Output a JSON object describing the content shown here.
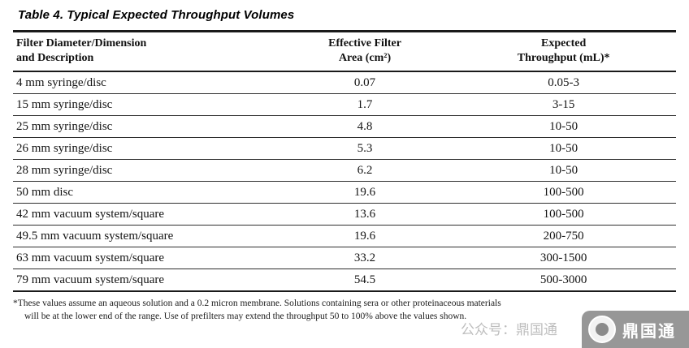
{
  "title": "Table 4. Typical Expected Throughput Volumes",
  "table": {
    "headers": [
      {
        "line1": "Filter Diameter/Dimension",
        "line2": "and Description"
      },
      {
        "line1": "Effective Filter",
        "line2": "Area (cm²)"
      },
      {
        "line1": "Expected",
        "line2": "Throughput (mL)*"
      }
    ],
    "rows": [
      [
        "4 mm syringe/disc",
        "0.07",
        "0.05-3"
      ],
      [
        "15 mm syringe/disc",
        "1.7",
        "3-15"
      ],
      [
        "25 mm syringe/disc",
        "4.8",
        "10-50"
      ],
      [
        "26 mm syringe/disc",
        "5.3",
        "10-50"
      ],
      [
        "28 mm syringe/disc",
        "6.2",
        "10-50"
      ],
      [
        "50 mm disc",
        "19.6",
        "100-500"
      ],
      [
        "42 mm vacuum system/square",
        "13.6",
        "100-500"
      ],
      [
        "49.5 mm vacuum system/square",
        "19.6",
        "200-750"
      ],
      [
        "63 mm vacuum system/square",
        "33.2",
        "300-1500"
      ],
      [
        "79 mm vacuum system/square",
        "54.5",
        "500-3000"
      ]
    ]
  },
  "footnote": {
    "line1": "*These values assume an aqueous solution and a 0.2 micron membrane. Solutions containing sera or other proteinaceous materials",
    "line2": "will be at the lower end of the range. Use of prefilters may extend the throughput 50 to 100% above the values shown."
  },
  "watermark": {
    "prefix": "公众号：鼎国通",
    "name": "鼎国通"
  }
}
